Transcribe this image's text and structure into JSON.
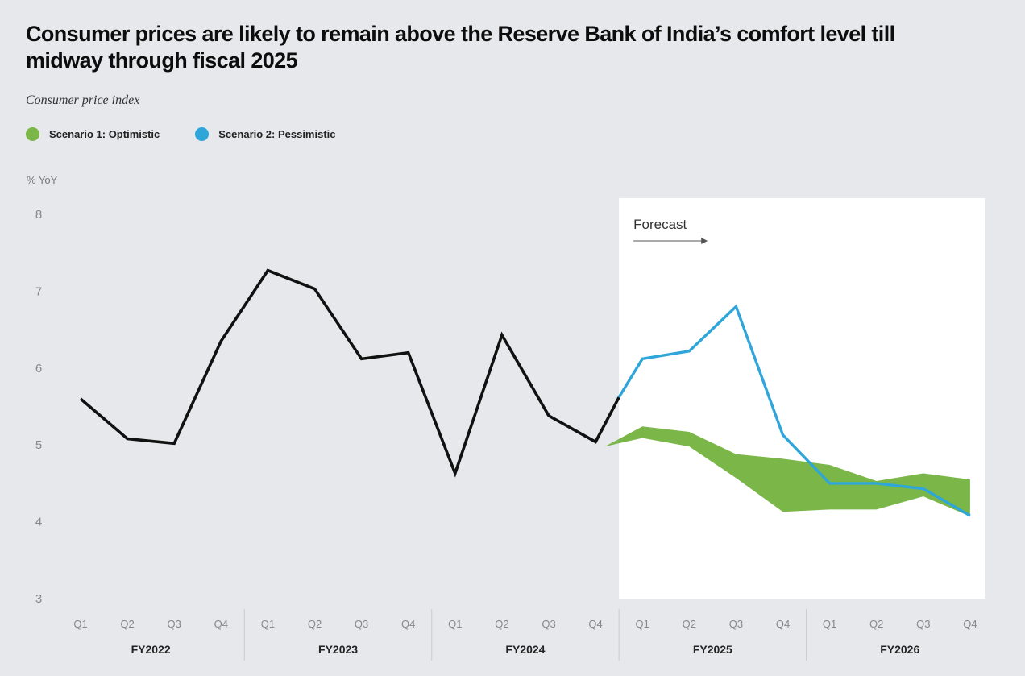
{
  "header": {
    "title": "Consumer prices are likely to remain above the Reserve Bank of India’s comfort level till midway through fiscal 2025",
    "subtitle": "Consumer price index"
  },
  "legend": [
    {
      "label": "Scenario 1: Optimistic",
      "color": "#7ab648"
    },
    {
      "label": "Scenario 2: Pessimistic",
      "color": "#2ea6d9"
    }
  ],
  "chart_data": {
    "type": "line",
    "ylabel": "% YoY",
    "ylim": [
      3,
      8
    ],
    "yticks": [
      3,
      4,
      5,
      6,
      7,
      8
    ],
    "quarters": [
      "Q1",
      "Q2",
      "Q3",
      "Q4",
      "Q1",
      "Q2",
      "Q3",
      "Q4",
      "Q1",
      "Q2",
      "Q3",
      "Q4",
      "Q1",
      "Q2",
      "Q3",
      "Q4",
      "Q1",
      "Q2",
      "Q3",
      "Q4"
    ],
    "fiscal_years": [
      "FY2022",
      "FY2023",
      "FY2024",
      "FY2025",
      "FY2026"
    ],
    "forecast_label": "Forecast",
    "forecast_start_quarter_index": 11.5,
    "actual": {
      "x": [
        0,
        1,
        2,
        3,
        4,
        5,
        6,
        7,
        8,
        9,
        10,
        11,
        11.5
      ],
      "values": [
        5.6,
        5.08,
        5.02,
        6.35,
        7.27,
        7.03,
        6.12,
        6.2,
        4.63,
        6.43,
        5.38,
        5.04,
        5.62
      ],
      "color": "#111111"
    },
    "series": [
      {
        "name": "Scenario 1: Optimistic",
        "kind": "band",
        "color": "#7ab648",
        "x": [
          11.2,
          12,
          13,
          14,
          15,
          16,
          17,
          18,
          19
        ],
        "upper": [
          4.98,
          5.24,
          5.17,
          4.88,
          4.82,
          4.74,
          4.53,
          4.63,
          4.55
        ],
        "lower": [
          4.98,
          5.09,
          4.98,
          4.57,
          4.13,
          4.16,
          4.16,
          4.33,
          4.07
        ]
      },
      {
        "name": "Scenario 2: Pessimistic",
        "kind": "line",
        "color": "#2ea6d9",
        "x": [
          11.5,
          12,
          13,
          14,
          15,
          16,
          17,
          18,
          19
        ],
        "values": [
          5.62,
          6.12,
          6.22,
          6.8,
          5.13,
          4.5,
          4.5,
          4.43,
          4.08
        ]
      }
    ]
  }
}
